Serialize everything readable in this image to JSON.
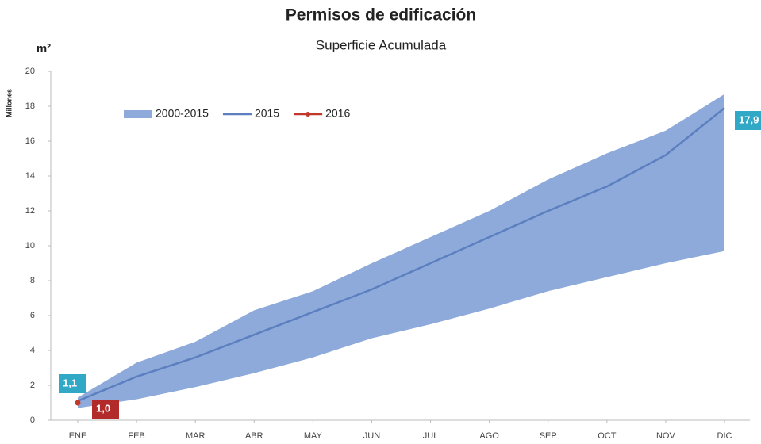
{
  "chart_data": {
    "type": "band-line",
    "title": "Permisos de edificación",
    "subtitle": "Superficie Acumulada",
    "unit_label": "m²",
    "y_label": "Millones",
    "categories": [
      "ENE",
      "FEB",
      "MAR",
      "ABR",
      "MAY",
      "JUN",
      "JUL",
      "AGO",
      "SEP",
      "OCT",
      "NOV",
      "DIC"
    ],
    "ylim": [
      0,
      20
    ],
    "yticks": [
      0,
      2,
      4,
      6,
      8,
      10,
      12,
      14,
      16,
      18,
      20
    ],
    "series": [
      {
        "name": "2000-2015",
        "kind": "band",
        "color": "#8eaadb",
        "high": [
          1.3,
          3.3,
          4.5,
          6.3,
          7.4,
          9.0,
          10.5,
          12.0,
          13.8,
          15.3,
          16.6,
          18.7
        ],
        "low": [
          0.7,
          1.2,
          1.9,
          2.7,
          3.6,
          4.7,
          5.5,
          6.4,
          7.4,
          8.2,
          9.0,
          9.7
        ]
      },
      {
        "name": "2015",
        "kind": "line",
        "color": "#5b7fbf",
        "label_color": "#31a9c6",
        "values": [
          1.1,
          2.5,
          3.6,
          4.9,
          6.2,
          7.5,
          9.0,
          10.5,
          12.0,
          13.4,
          15.2,
          17.9
        ],
        "value_labels": [
          "1,1",
          null,
          null,
          null,
          null,
          null,
          null,
          null,
          null,
          null,
          null,
          "17,9"
        ]
      },
      {
        "name": "2016",
        "kind": "line",
        "color": "#c0392b",
        "label_color": "#b22a2a",
        "values": [
          1.0,
          null,
          null,
          null,
          null,
          null,
          null,
          null,
          null,
          null,
          null,
          null
        ],
        "value_labels": [
          "1,0",
          null,
          null,
          null,
          null,
          null,
          null,
          null,
          null,
          null,
          null,
          null
        ]
      }
    ]
  }
}
